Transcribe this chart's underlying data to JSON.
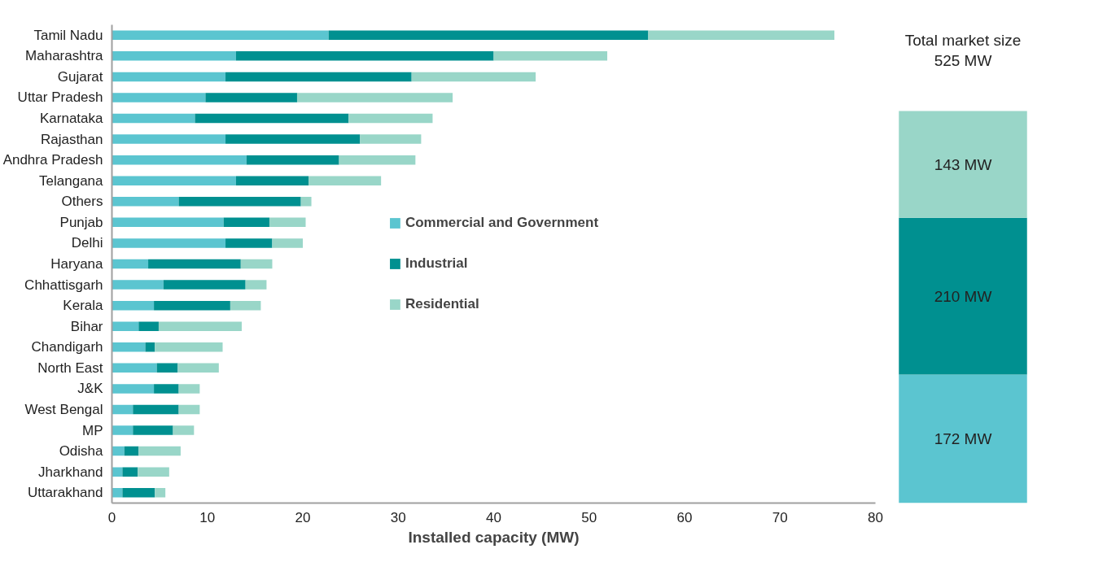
{
  "chart_data": [
    {
      "type": "bar",
      "orientation": "horizontal",
      "stacked": true,
      "xlabel": "Installed capacity (MW)",
      "categories": [
        "Tamil Nadu",
        "Maharashtra",
        "Gujarat",
        "Uttar Pradesh",
        "Karnataka",
        "Rajasthan",
        "Andhra Pradesh",
        "Telangana",
        "Others",
        "Punjab",
        "Delhi",
        "Haryana",
        "Chhattisgarh",
        "Kerala",
        "Bihar",
        "Chandigarh",
        "North East",
        "J&K",
        "West Bengal",
        "MP",
        "Odisha",
        "Jharkhand",
        "Uttarakhand"
      ],
      "series": [
        {
          "name": "Commercial and Government",
          "color": "#5bc5d0",
          "values": [
            22.7,
            13.0,
            11.9,
            9.8,
            8.7,
            11.9,
            14.1,
            13.0,
            7.0,
            11.7,
            11.9,
            3.8,
            5.4,
            4.4,
            2.8,
            3.5,
            4.7,
            4.4,
            2.2,
            2.2,
            1.3,
            1.1,
            1.1
          ]
        },
        {
          "name": "Industrial",
          "color": "#009090",
          "values": [
            33.5,
            27.0,
            19.5,
            9.6,
            16.1,
            14.1,
            9.7,
            7.6,
            12.8,
            4.8,
            4.9,
            9.7,
            8.6,
            8.0,
            2.1,
            1.0,
            2.2,
            2.6,
            4.8,
            4.2,
            1.5,
            1.6,
            3.4
          ]
        },
        {
          "name": "Residential",
          "color": "#99d6c8",
          "values": [
            19.5,
            11.9,
            13.0,
            16.3,
            8.8,
            6.4,
            8.0,
            7.6,
            1.1,
            3.8,
            3.2,
            3.3,
            2.2,
            3.2,
            8.7,
            7.1,
            4.3,
            2.2,
            2.2,
            2.2,
            4.4,
            3.3,
            1.1
          ]
        }
      ],
      "xlim": [
        0,
        80
      ],
      "xticks": [
        0,
        10,
        20,
        30,
        40,
        50,
        60,
        70,
        80
      ],
      "grid": false,
      "legend": "center"
    },
    {
      "type": "bar",
      "stacked": true,
      "title": "Total market size\n525 MW",
      "categories": [
        null
      ],
      "series": [
        {
          "color": "#5bc5d0",
          "values": [
            172
          ],
          "value_labels": [
            "172 MW"
          ]
        },
        {
          "color": "#009090",
          "values": [
            210
          ],
          "value_labels": [
            "210 MW"
          ]
        },
        {
          "color": "#99d6c8",
          "values": [
            143
          ],
          "value_labels": [
            "143 MW"
          ]
        }
      ],
      "tick_labels": false,
      "grid": false
    }
  ]
}
